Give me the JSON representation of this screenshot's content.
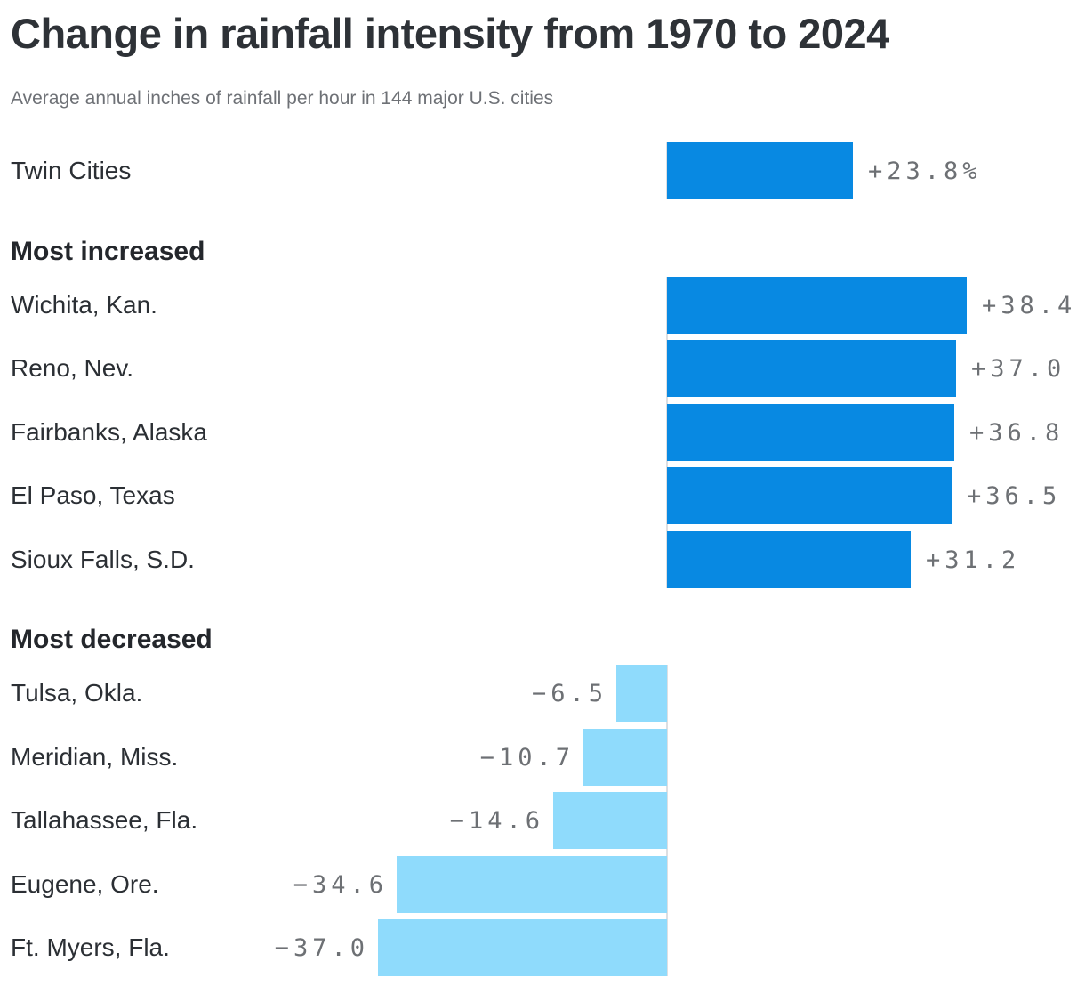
{
  "header": {
    "title": "Change in rainfall intensity from 1970 to 2024",
    "subtitle": "Average annual inches of rainfall per hour in 144 major U.S. cities"
  },
  "colors": {
    "positive_bar": "#0889e2",
    "negative_bar": "#8fdbfc",
    "axis_line": "#dddfe2",
    "title_text": "#2e3237",
    "subtitle_text": "#6e7176",
    "label_text": "#2b2f34",
    "heading_text": "#24272c",
    "value_text": "#6d7074"
  },
  "chart_data": {
    "type": "bar",
    "orientation": "horizontal",
    "title": "Change in rainfall intensity from 1970 to 2024",
    "subtitle": "Average annual inches of rainfall per hour in 144 major U.S. cities",
    "value_unit": "percent change",
    "baseline_value": 0,
    "xlim": [
      -40,
      40
    ],
    "grid": false,
    "legend": false,
    "groups": [
      {
        "heading": null,
        "rows": [
          {
            "label": "Twin Cities",
            "value": 23.8,
            "value_label": "+23.8%"
          }
        ]
      },
      {
        "heading": "Most increased",
        "rows": [
          {
            "label": "Wichita, Kan.",
            "value": 38.4,
            "value_label": "+38.4"
          },
          {
            "label": "Reno, Nev.",
            "value": 37.0,
            "value_label": "+37.0"
          },
          {
            "label": "Fairbanks, Alaska",
            "value": 36.8,
            "value_label": "+36.8"
          },
          {
            "label": "El Paso, Texas",
            "value": 36.5,
            "value_label": "+36.5"
          },
          {
            "label": "Sioux Falls, S.D.",
            "value": 31.2,
            "value_label": "+31.2"
          }
        ]
      },
      {
        "heading": "Most decreased",
        "rows": [
          {
            "label": "Tulsa, Okla.",
            "value": -6.5,
            "value_label": "−6.5"
          },
          {
            "label": "Meridian, Miss.",
            "value": -10.7,
            "value_label": "−10.7"
          },
          {
            "label": "Tallahassee, Fla.",
            "value": -14.6,
            "value_label": "−14.6"
          },
          {
            "label": "Eugene, Ore.",
            "value": -34.6,
            "value_label": "−34.6"
          },
          {
            "label": "Ft. Myers, Fla.",
            "value": -37.0,
            "value_label": "−37.0"
          }
        ]
      }
    ]
  }
}
